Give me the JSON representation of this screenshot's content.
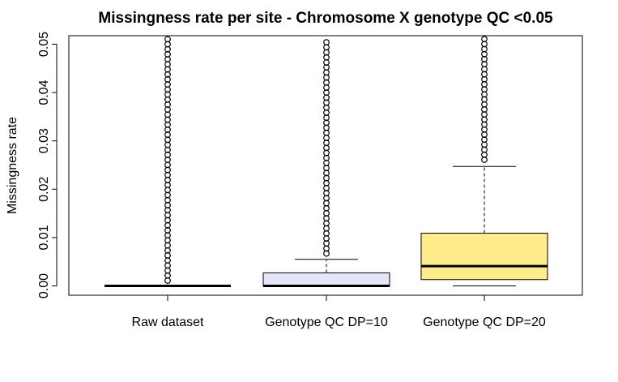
{
  "chart_data": {
    "type": "boxplot",
    "title": "Missingness rate per site - Chromosome X genotype QC <0.05",
    "xlabel": "",
    "ylabel": "Missingness rate",
    "ylim": [
      -0.002,
      0.052
    ],
    "yticks": [
      0.0,
      0.01,
      0.02,
      0.03,
      0.04,
      0.05
    ],
    "ytick_labels": [
      "0.00",
      "0.01",
      "0.02",
      "0.03",
      "0.04",
      "0.05"
    ],
    "grid": false,
    "categories": [
      "Raw dataset",
      "Genotype QC DP=10",
      "Genotype QC DP=20"
    ],
    "boxes": [
      {
        "label": "Raw dataset",
        "fill": "#ffffff",
        "whisker_low": 0.0,
        "q1": 0.0,
        "median": 0.0,
        "q3": 0.0,
        "whisker_high": 0.0,
        "outliers_from": 0.0011,
        "outliers_to": 0.052
      },
      {
        "label": "Genotype QC DP=10",
        "fill": "#e6e6fa",
        "whisker_low": 0.0,
        "q1": 0.0,
        "median": 0.0,
        "q3": 0.0027,
        "whisker_high": 0.0055,
        "outliers_from": 0.0067,
        "outliers_to": 0.052
      },
      {
        "label": "Genotype QC DP=20",
        "fill": "#ffec8b",
        "whisker_low": 0.0,
        "q1": 0.0013,
        "median": 0.0041,
        "q3": 0.0109,
        "whisker_high": 0.0247,
        "outliers_from": 0.0261,
        "outliers_to": 0.052
      }
    ]
  }
}
